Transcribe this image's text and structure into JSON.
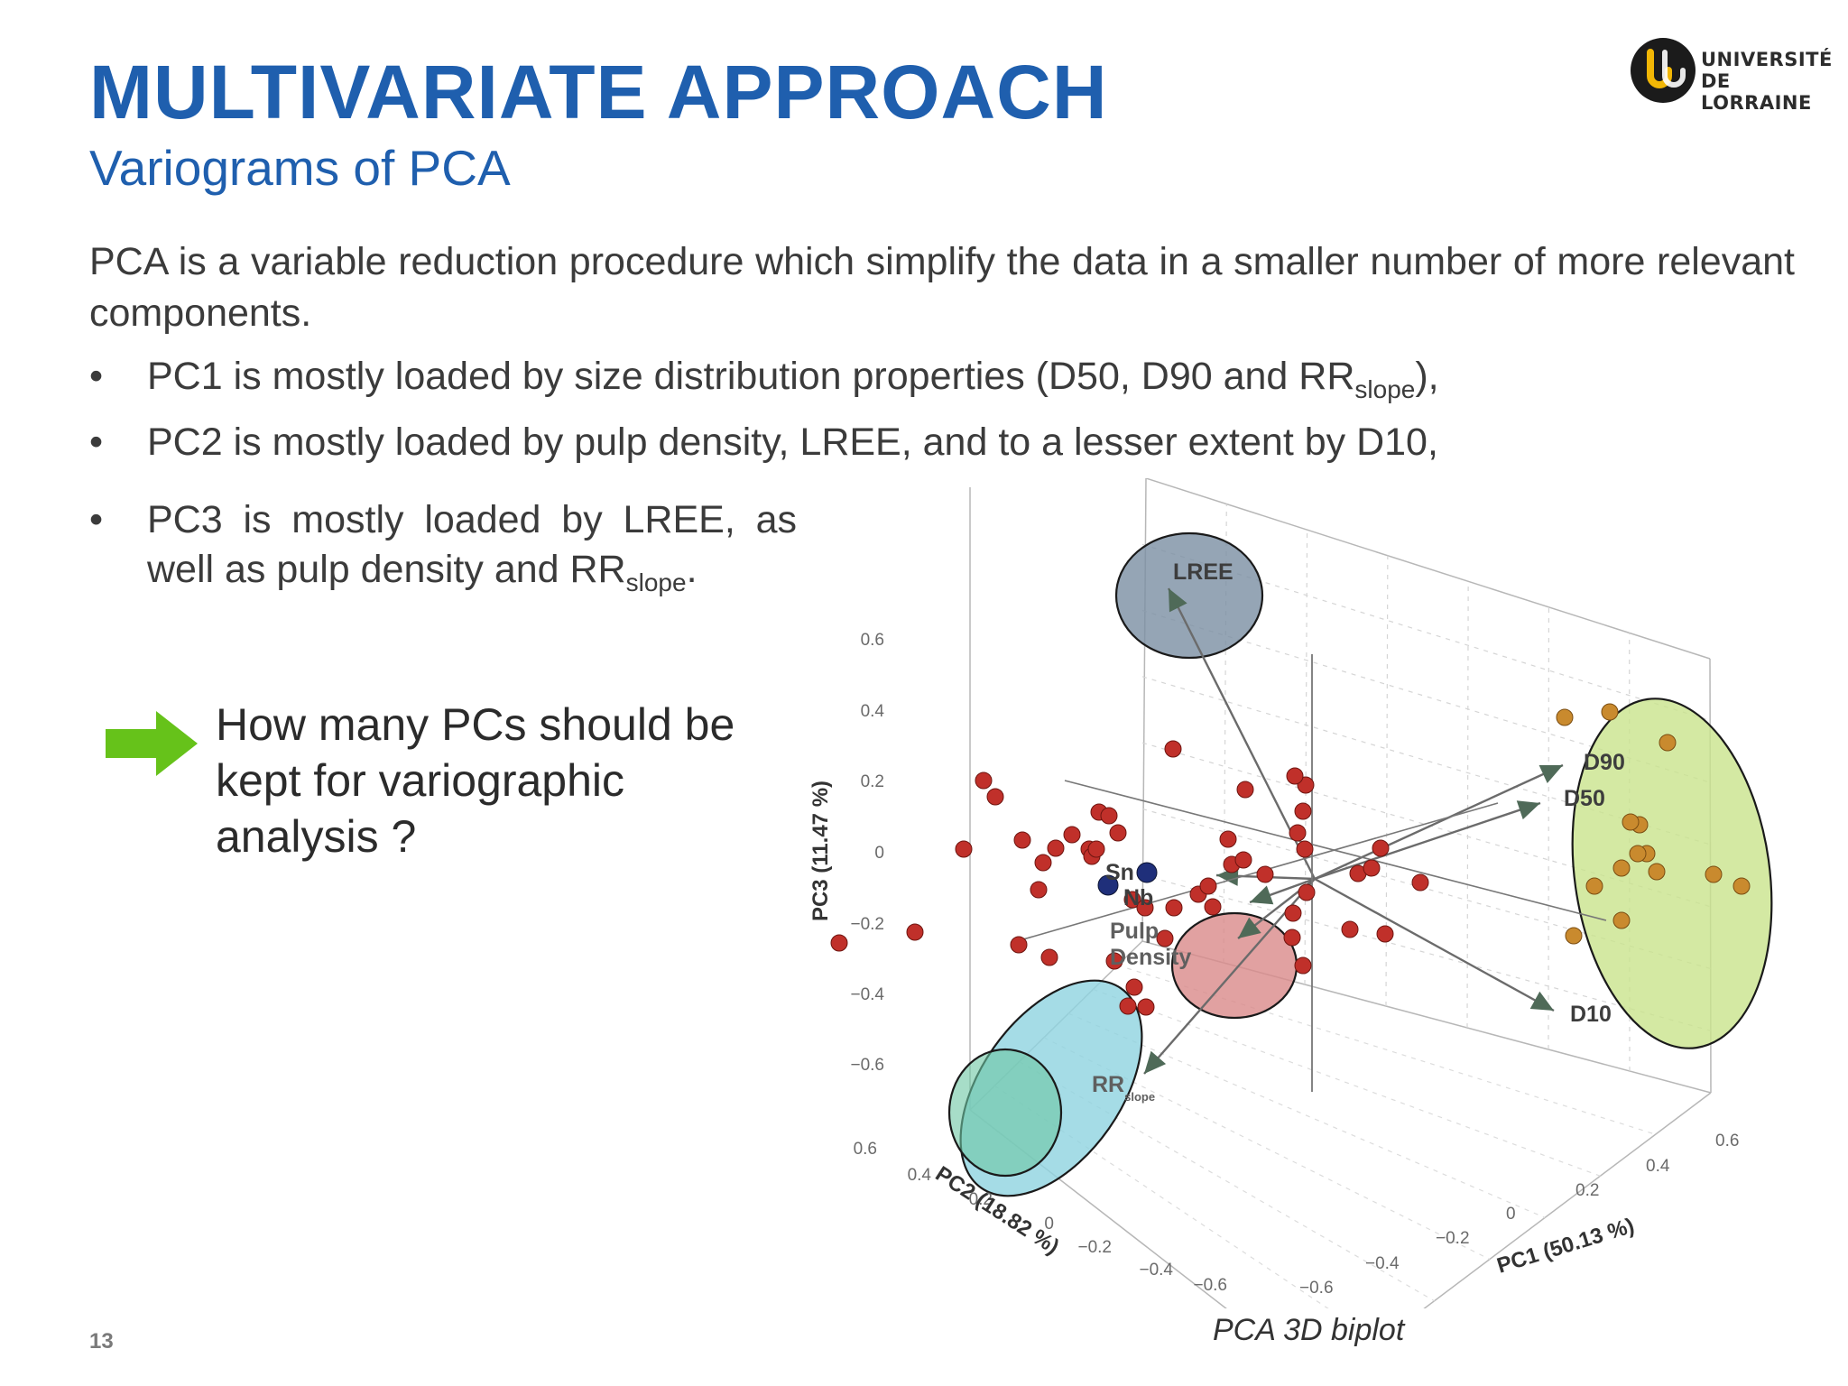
{
  "slide": {
    "title": "MULTIVARIATE APPROACH",
    "subtitle": "Variograms of PCA",
    "logo": {
      "line1": "UNIVERSITÉ",
      "line2": "DE LORRAINE",
      "icon": "universite-de-lorraine-logo"
    },
    "intro": "PCA is a variable reduction procedure which simplify the data in a smaller number of more relevant components.",
    "bullets": [
      {
        "text": "PC1 is mostly loaded by size distribution properties (D50, D90 and RR",
        "sub": "slope",
        "tail": "),"
      },
      {
        "text": "PC2 is mostly loaded by pulp density, LREE, and to a lesser extent by D10,",
        "sub": "",
        "tail": ""
      },
      {
        "line1": "PC3 is mostly loaded by LREE, as",
        "line2": "well as pulp density and RR",
        "sub": "slope",
        "tail": "."
      }
    ],
    "bullet_symbol": "•",
    "question": {
      "line1": "How many PCs should be",
      "line2": "kept for variographic",
      "line3": "analysis ?",
      "icon": "green-arrow-right-icon",
      "color": "#66c21a"
    },
    "slide_number": "13",
    "caption": "PCA 3D biplot"
  },
  "chart_data": {
    "type": "scatter",
    "projection": "3d",
    "axes": {
      "x": {
        "label": "PC1 (50.13 %)",
        "ticks": [
          "−0.6",
          "−0.4",
          "−0.2",
          "0",
          "0.2",
          "0.4",
          "0.6"
        ],
        "range": [
          -0.6,
          0.6
        ]
      },
      "y": {
        "label": "PC2 (18.82 %)",
        "ticks": [
          "−0.6",
          "−0.4",
          "−0.2",
          "0",
          "0.2",
          "0.4",
          "0.6"
        ],
        "range": [
          -0.6,
          0.6
        ]
      },
      "z": {
        "label": "PC3 (11.47 %)",
        "ticks": [
          "−0.6",
          "−0.4",
          "−0.2",
          "0",
          "0.2",
          "0.4",
          "0.6"
        ],
        "range": [
          -0.6,
          0.6
        ]
      }
    },
    "grid": true,
    "loadings": [
      {
        "label": "LREE"
      },
      {
        "label": "D90"
      },
      {
        "label": "D50"
      },
      {
        "label": "D10"
      },
      {
        "label": "Sn"
      },
      {
        "label": "Nb"
      },
      {
        "label": "Pulp",
        "label2": "Density"
      },
      {
        "label": "RR",
        "sub": "slope"
      }
    ],
    "groups": [
      {
        "members": [
          "LREE"
        ],
        "color": "#7b8ea3"
      },
      {
        "members": [
          "D90",
          "D50",
          "D10"
        ],
        "color": "#c9e38c"
      },
      {
        "members": [
          "Pulp Density"
        ],
        "color": "#d98a8a"
      },
      {
        "members": [
          "RR slope"
        ],
        "color": "#8fd3e0"
      }
    ],
    "observation_colors": {
      "default": "#c0302a",
      "size_group": "#c98a2e",
      "metal": "#1f2f7a"
    }
  }
}
